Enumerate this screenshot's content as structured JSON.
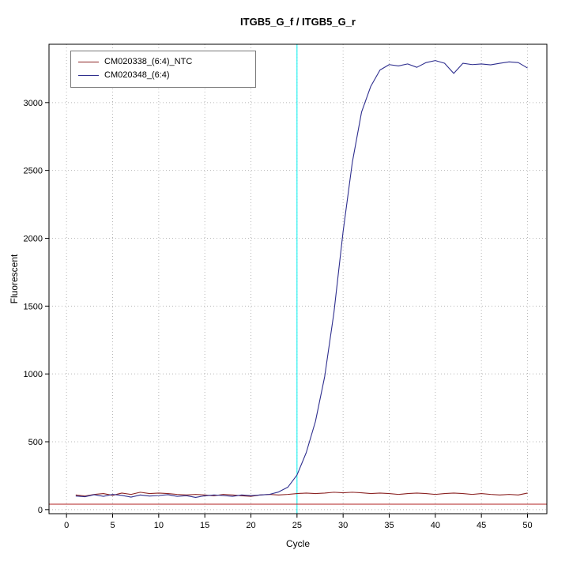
{
  "chart_data": {
    "type": "line",
    "title": "ITGB5_G_f / ITGB5_G_r",
    "xlabel": "Cycle",
    "ylabel": "Fluorescent",
    "xlim": [
      -1.9,
      52.1
    ],
    "ylim": [
      -30,
      3430
    ],
    "xticks": [
      0,
      5,
      10,
      15,
      20,
      25,
      30,
      35,
      40,
      45,
      50
    ],
    "yticks": [
      0,
      500,
      1000,
      1500,
      2000,
      2500,
      3000
    ],
    "grid": "dotted",
    "legend_position": "top-left",
    "ct_line_x": 25,
    "threshold_y": 40,
    "colors": {
      "grid": "#b8b8b8",
      "ct_line": "#00eeee",
      "threshold": "#b22222",
      "box": "#000000"
    },
    "cycles": [
      1,
      2,
      3,
      4,
      5,
      6,
      7,
      8,
      9,
      10,
      11,
      12,
      13,
      14,
      15,
      16,
      17,
      18,
      19,
      20,
      21,
      22,
      23,
      24,
      25,
      26,
      27,
      28,
      29,
      30,
      31,
      32,
      33,
      34,
      35,
      36,
      37,
      38,
      39,
      40,
      41,
      42,
      43,
      44,
      45,
      46,
      47,
      48,
      49,
      50
    ],
    "series": [
      {
        "name": "CM020338_(6:4)_NTC",
        "color": "#8b2323",
        "values": [
          108,
          100,
          112,
          118,
          105,
          122,
          112,
          128,
          118,
          122,
          118,
          112,
          108,
          112,
          108,
          102,
          112,
          108,
          102,
          98,
          108,
          112,
          108,
          112,
          118,
          122,
          118,
          122,
          128,
          124,
          128,
          124,
          118,
          122,
          118,
          112,
          118,
          122,
          118,
          112,
          118,
          122,
          118,
          112,
          118,
          112,
          108,
          112,
          108,
          122
        ]
      },
      {
        "name": "CM020348_(6:4)",
        "color": "#2e2e8e",
        "values": [
          100,
          95,
          110,
          98,
          112,
          105,
          92,
          108,
          100,
          104,
          110,
          98,
          103,
          90,
          102,
          108,
          104,
          98,
          108,
          103,
          108,
          112,
          130,
          165,
          255,
          420,
          650,
          980,
          1450,
          2050,
          2560,
          2930,
          3120,
          3240,
          3280,
          3270,
          3285,
          3260,
          3295,
          3310,
          3290,
          3215,
          3290,
          3280,
          3285,
          3278,
          3290,
          3300,
          3295,
          3255
        ]
      }
    ]
  }
}
